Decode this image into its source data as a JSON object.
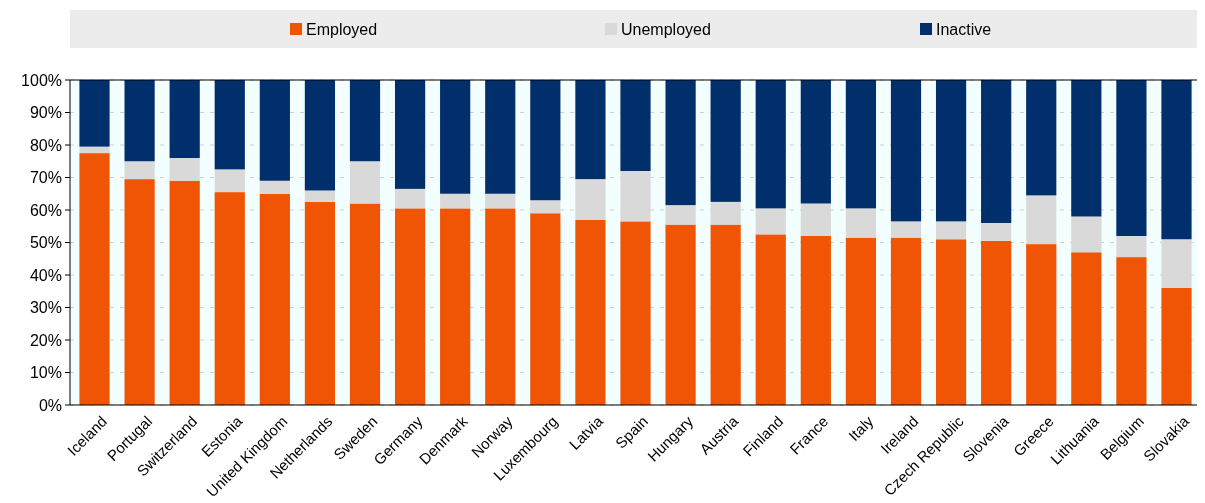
{
  "chart_data": {
    "type": "bar",
    "stacked": true,
    "legend": "top",
    "grid": "y",
    "categories": [
      "Iceland",
      "Portugal",
      "Switzerland",
      "Estonia",
      "United Kingdom",
      "Netherlands",
      "Sweden",
      "Germany",
      "Denmark",
      "Norway",
      "Luxembourg",
      "Latvia",
      "Spain",
      "Hungary",
      "Austria",
      "Finland",
      "France",
      "Italy",
      "Ireland",
      "Czech Republic",
      "Slovenia",
      "Greece",
      "Lithuania",
      "Belgium",
      "Slovakia"
    ],
    "ylim": [
      0,
      100
    ],
    "yticks": [
      {
        "value": 0,
        "label": "0%"
      },
      {
        "value": 10,
        "label": "10%"
      },
      {
        "value": 20,
        "label": "20%"
      },
      {
        "value": 30,
        "label": "30%"
      },
      {
        "value": 40,
        "label": "40%"
      },
      {
        "value": 50,
        "label": "50%"
      },
      {
        "value": 60,
        "label": "60%"
      },
      {
        "value": 70,
        "label": "70%"
      },
      {
        "value": 80,
        "label": "80%"
      },
      {
        "value": 90,
        "label": "90%"
      },
      {
        "value": 100,
        "label": "100%"
      }
    ],
    "series": [
      {
        "name": "Employed",
        "color": "#f05505",
        "values": [
          77.5,
          69.5,
          69,
          65.5,
          65,
          62.5,
          62,
          60.5,
          60.5,
          60.5,
          59,
          57,
          56.5,
          55.5,
          55.5,
          52.5,
          52,
          51.5,
          51.5,
          51,
          50.5,
          49.5,
          47,
          45.5,
          36
        ]
      },
      {
        "name": "Unemployed",
        "color": "#d9d9d9",
        "values": [
          2,
          5.5,
          7,
          7,
          4,
          3.5,
          13,
          6,
          4.5,
          4.5,
          4,
          12.5,
          15.5,
          6,
          7,
          8,
          10,
          9,
          5,
          5.5,
          5.5,
          15,
          11,
          6.5,
          15
        ]
      },
      {
        "name": "Inactive",
        "color": "#002f6c",
        "values": [
          20.5,
          25,
          24,
          27.5,
          31,
          34,
          25,
          33.5,
          35,
          35,
          37,
          30.5,
          28,
          38.5,
          37.5,
          39.5,
          38,
          39.5,
          43.5,
          43.5,
          44,
          35.5,
          42,
          48,
          49
        ]
      }
    ]
  }
}
